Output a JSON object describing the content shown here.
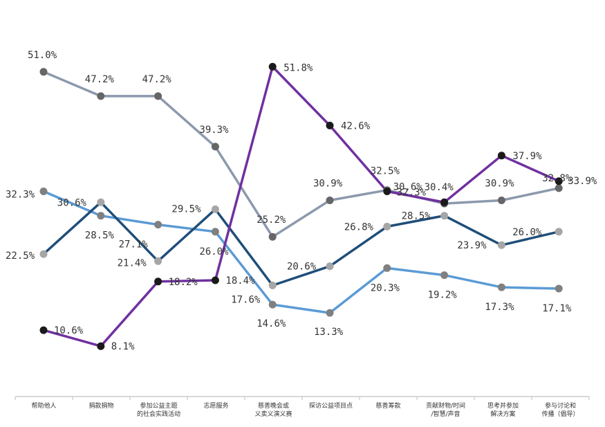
{
  "chart_data": {
    "type": "line",
    "title": "",
    "xlabel": "",
    "ylabel": "",
    "ylim": [
      0,
      60
    ],
    "grid": false,
    "legend": "none",
    "categories": [
      [
        "帮助他人"
      ],
      [
        "捐款捐物"
      ],
      [
        "参加公益主题",
        "的社会实践活动"
      ],
      [
        "志愿服务"
      ],
      [
        "慈善晚会或",
        "义卖义演义赛"
      ],
      [
        "探访公益项目点"
      ],
      [
        "慈善筹款"
      ],
      [
        "贡献财物/时间",
        "/智慧/声音"
      ],
      [
        "思考并参加",
        "解决方案"
      ],
      [
        "参与讨论和",
        "传播（倡导）"
      ]
    ],
    "series": [
      {
        "name": "series-1",
        "color": "#8c99ad",
        "marker_color": "#666666",
        "values": [
          51.0,
          47.2,
          47.2,
          39.3,
          25.2,
          30.9,
          32.5,
          30.4,
          30.9,
          32.8
        ],
        "labels": [
          "51.0%",
          "47.2%",
          "47.2%",
          "39.3%",
          "25.2%",
          "30.9%",
          "32.5%",
          "30.4%",
          "30.9%",
          "32.8%"
        ]
      },
      {
        "name": "series-2",
        "color": "#5b9bd5",
        "marker_color": "#808080",
        "values": [
          32.3,
          28.5,
          27.1,
          26.0,
          14.6,
          13.3,
          20.3,
          19.2,
          17.3,
          17.1
        ],
        "labels": [
          "32.3%",
          "28.5%",
          "27.1%",
          "26.0%",
          "14.6%",
          "13.3%",
          "20.3%",
          "19.2%",
          "17.3%",
          "17.1%"
        ]
      },
      {
        "name": "series-3",
        "color": "#1f4e79",
        "marker_color": "#a6a6a6",
        "values": [
          22.5,
          30.6,
          21.4,
          29.5,
          17.6,
          20.6,
          26.8,
          28.5,
          23.9,
          26.0
        ],
        "labels": [
          "22.5%",
          "30.6%",
          "21.4%",
          "29.5%",
          "17.6%",
          "20.6%",
          "26.8%",
          "28.5%",
          "23.9%",
          "26.0%"
        ]
      },
      {
        "name": "series-4",
        "color": "#7030a0",
        "marker_color": "#1a1a1a",
        "values": [
          10.6,
          8.1,
          18.2,
          18.4,
          51.8,
          42.6,
          32.3,
          30.6,
          37.9,
          33.9
        ],
        "labels": [
          "10.6%",
          "8.1%",
          "18.2%",
          "18.4%",
          "51.8%",
          "42.6%",
          "32.3%",
          "30.6%",
          "37.9%",
          "33.9%"
        ]
      }
    ]
  }
}
